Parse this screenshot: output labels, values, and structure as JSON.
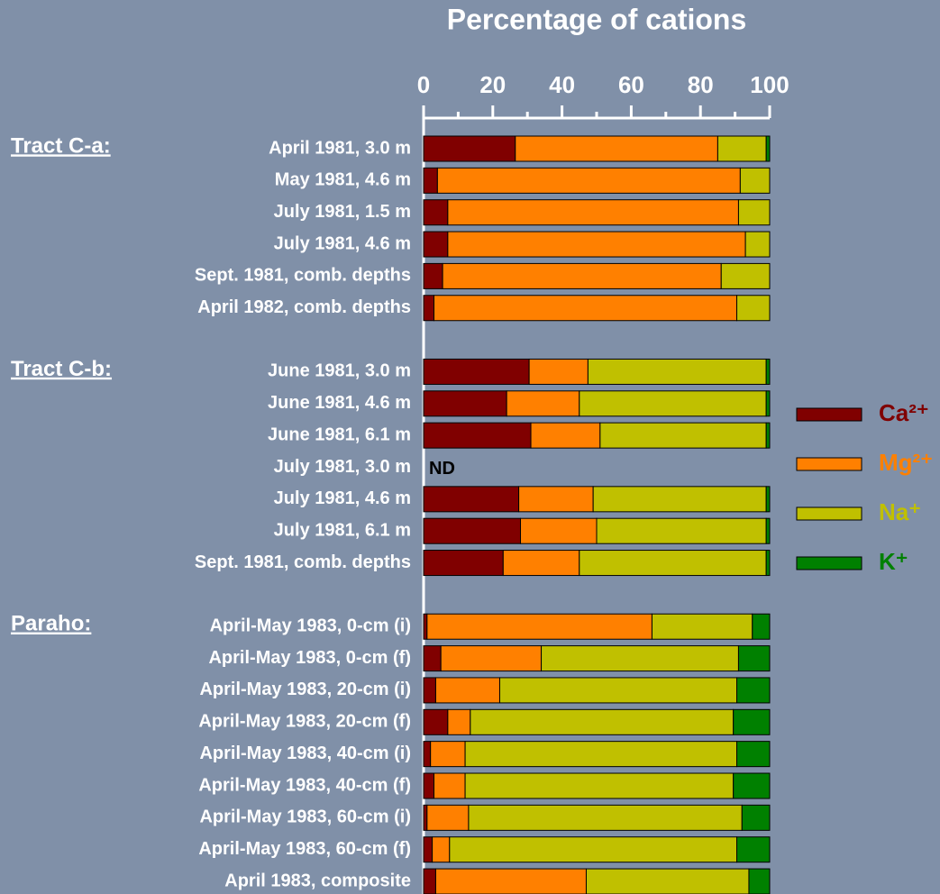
{
  "chart_data": {
    "type": "stacked-bar-horizontal",
    "title": "Percentage of cations",
    "xlim": [
      0,
      100
    ],
    "xticks": [
      0,
      20,
      40,
      60,
      80,
      100
    ],
    "xminorticks": [
      10,
      30,
      50,
      70,
      90
    ],
    "group_labels": [
      "Tract C-a:",
      null,
      null,
      null,
      null,
      null,
      null,
      "Tract C-b:",
      null,
      null,
      null,
      null,
      null,
      null,
      null,
      "Paraho:",
      null,
      null,
      null,
      null,
      null,
      null,
      null,
      null
    ],
    "categories": [
      "April 1981, 3.0 m",
      "May 1981, 4.6 m",
      "July 1981, 1.5 m",
      "July 1981, 4.6 m",
      "Sept. 1981, comb. depths",
      "April 1982, comb. depths",
      null,
      "June 1981, 3.0 m",
      "June 1981, 4.6 m",
      "June 1981, 6.1 m",
      "July 1981, 3.0 m",
      "July 1981, 4.6 m",
      "July 1981, 6.1 m",
      "Sept. 1981, comb. depths",
      null,
      "April-May 1983, 0-cm (i)",
      "April-May 1983, 0-cm (f)",
      "April-May 1983, 20-cm (i)",
      "April-May 1983, 20-cm (f)",
      "April-May 1983, 40-cm (i)",
      "April-May 1983, 40-cm (f)",
      "April-May 1983, 60-cm (i)",
      "April-May 1983, 60-cm (f)",
      "April 1983, composite"
    ],
    "notes": [
      null,
      null,
      null,
      null,
      null,
      null,
      null,
      null,
      null,
      null,
      "ND",
      null,
      null,
      null,
      null,
      null,
      null,
      null,
      null,
      null,
      null,
      null,
      null,
      null
    ],
    "series": [
      {
        "name": "Ca²⁺",
        "color": "#800000",
        "values": [
          26.5,
          4,
          7,
          7,
          5.5,
          3,
          null,
          30.5,
          24,
          31,
          null,
          27.5,
          28,
          23,
          null,
          1,
          5,
          3.5,
          7,
          2,
          3,
          1,
          2.5,
          3.5
        ]
      },
      {
        "name": "Mg²⁺",
        "color": "#ff8000",
        "values": [
          58.5,
          87.5,
          84,
          86,
          80.5,
          87.5,
          null,
          17,
          21,
          20,
          null,
          21.5,
          22,
          22,
          null,
          65,
          29,
          18.5,
          6.5,
          10,
          9,
          12,
          5,
          43.5
        ]
      },
      {
        "name": "Na⁺",
        "color": "#c0c000",
        "values": [
          14,
          8.5,
          9,
          7,
          14,
          9.5,
          null,
          51.5,
          54,
          48,
          null,
          50,
          49,
          54,
          null,
          29,
          57,
          68.5,
          76,
          78.5,
          77.5,
          79,
          83,
          47
        ]
      },
      {
        "name": "K⁺",
        "color": "#008000",
        "values": [
          1,
          0,
          0,
          0,
          0,
          0,
          null,
          1,
          1,
          1,
          null,
          1,
          1,
          1,
          null,
          5,
          9,
          9.5,
          10.5,
          9.5,
          10.5,
          8,
          9.5,
          6
        ]
      }
    ]
  }
}
